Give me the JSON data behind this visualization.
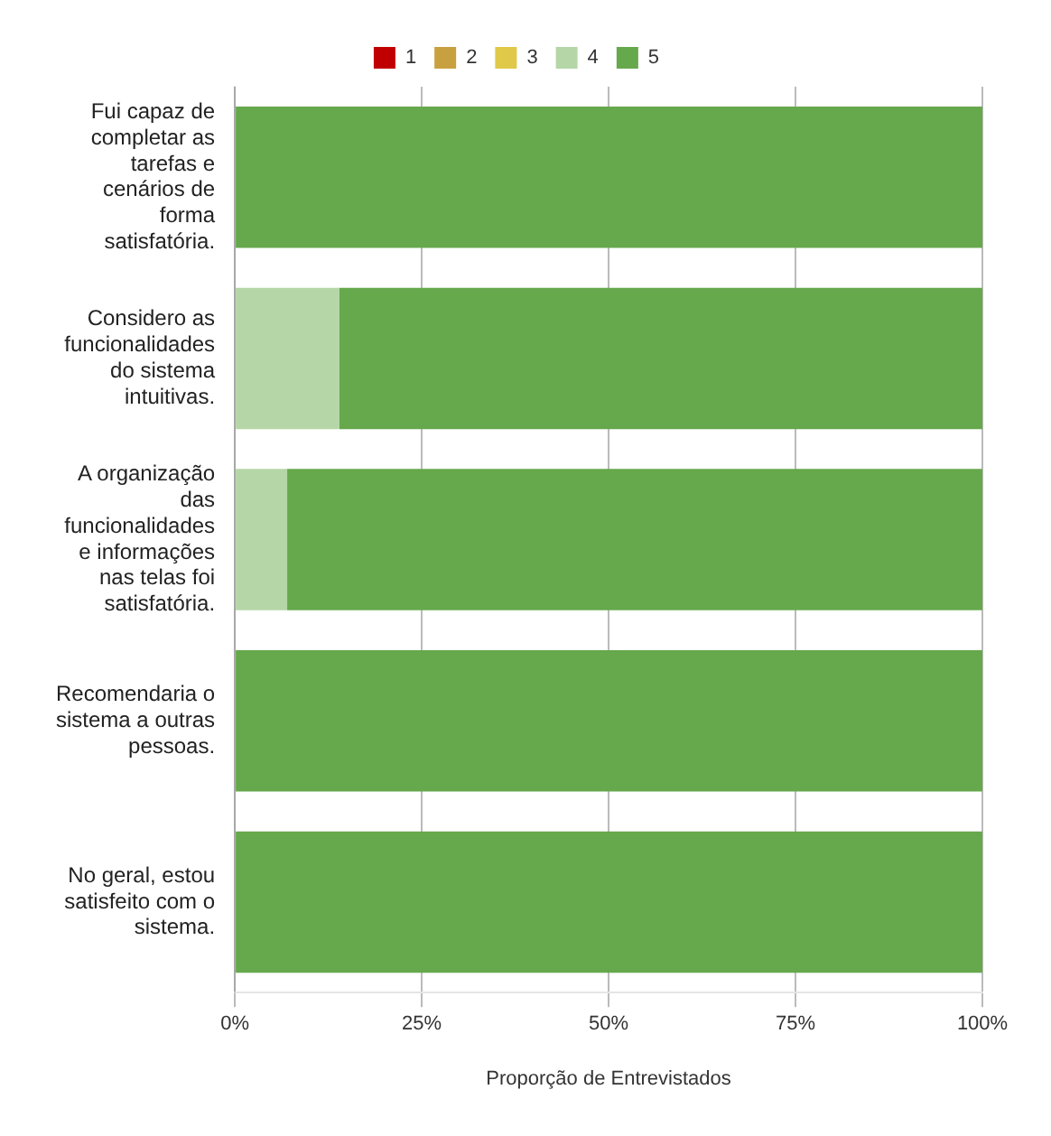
{
  "chart_data": {
    "type": "bar",
    "orientation": "horizontal",
    "stacked": true,
    "xlabel": "Proporção de Entrevistados",
    "categories": [
      "Fui capaz de completar as tarefas e cenários de forma satisfatória.",
      "Considero as funcionalidades do sistema intuitivas.",
      "A organização das funcionalidades e informações nas telas foi satisfatória.",
      "Recomendaria o sistema a outras pessoas.",
      "No geral, estou satisfeito com o sistema."
    ],
    "series": [
      {
        "name": "1",
        "color": "#c00000",
        "values": [
          0,
          0,
          0,
          0,
          0
        ]
      },
      {
        "name": "2",
        "color": "#c8a040",
        "values": [
          0,
          0,
          0,
          0,
          0
        ]
      },
      {
        "name": "3",
        "color": "#e0c848",
        "values": [
          0,
          0,
          0,
          0,
          0
        ]
      },
      {
        "name": "4",
        "color": "#b5d6a6",
        "values": [
          0,
          14,
          7,
          0,
          0
        ]
      },
      {
        "name": "5",
        "color": "#66a84c",
        "values": [
          100,
          86,
          93,
          100,
          100
        ]
      }
    ],
    "xlim": [
      0,
      100
    ],
    "xticks": [
      {
        "value": 0,
        "label": "0%"
      },
      {
        "value": 25,
        "label": "25%"
      },
      {
        "value": 50,
        "label": "50%"
      },
      {
        "value": 75,
        "label": "75%"
      },
      {
        "value": 100,
        "label": "100%"
      }
    ],
    "grid": "x",
    "legend": "top"
  }
}
